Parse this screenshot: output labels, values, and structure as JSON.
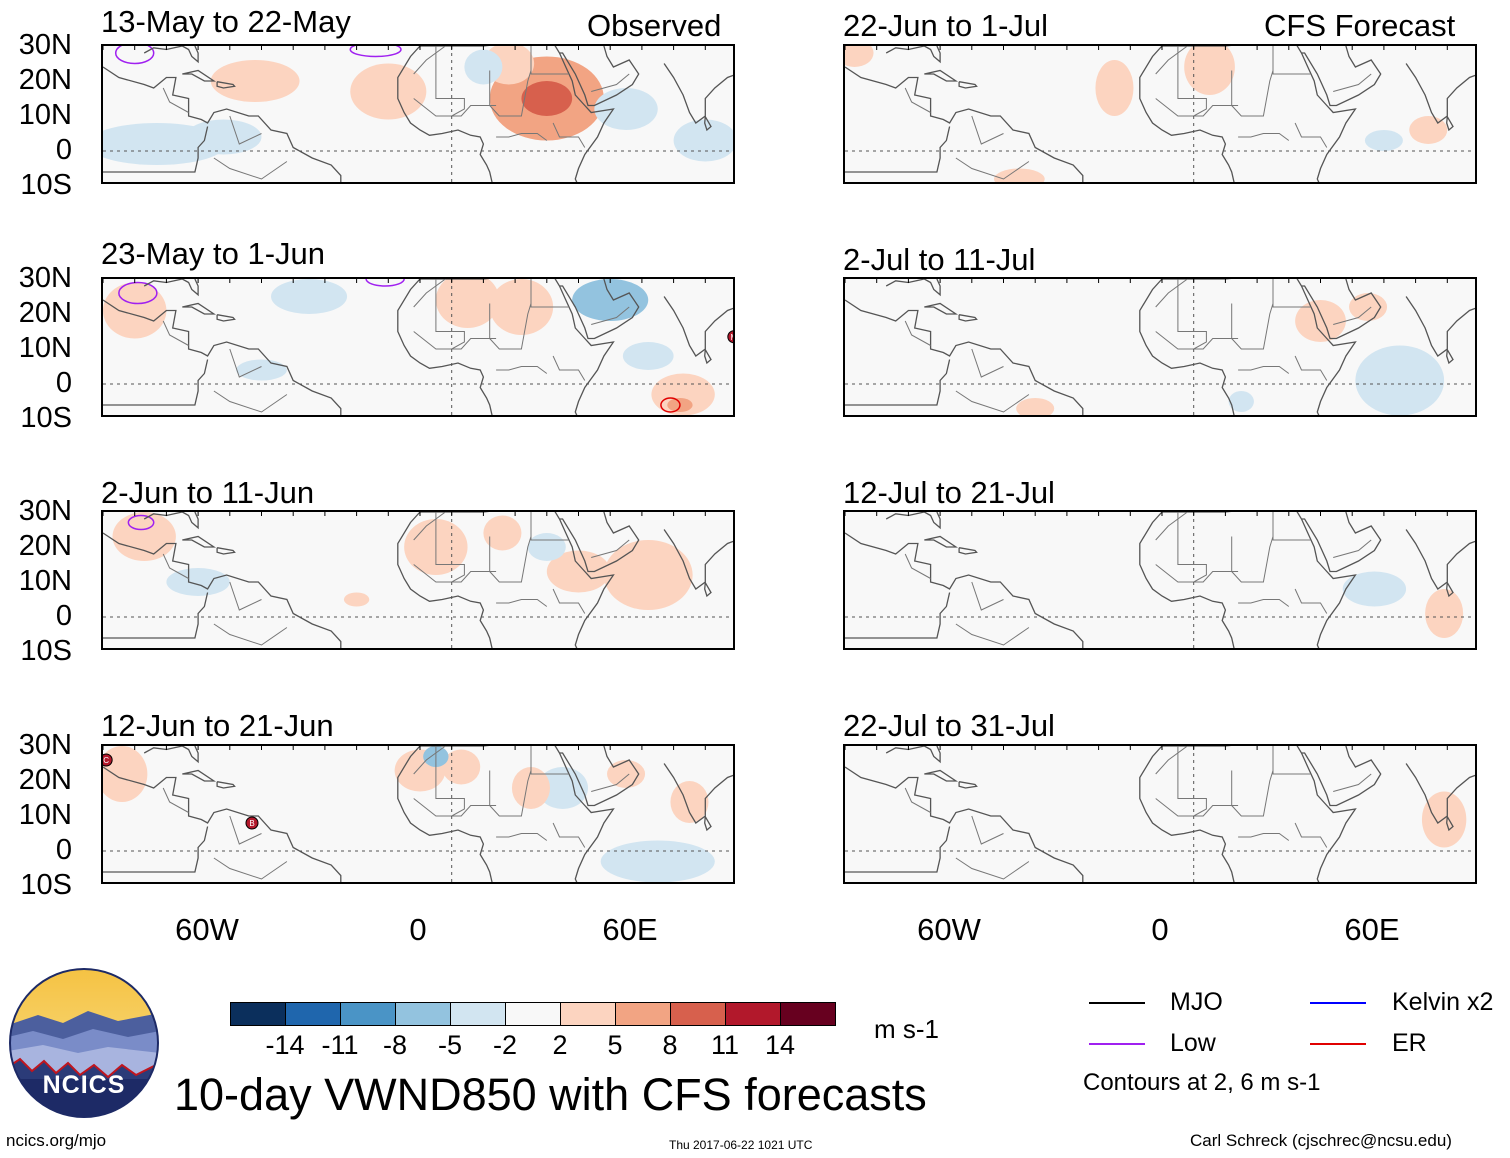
{
  "header": {
    "observed_label": "Observed",
    "forecast_label": "CFS Forecast"
  },
  "panels_left": [
    {
      "title": "13-May to 22-May"
    },
    {
      "title": "23-May to 1-Jun"
    },
    {
      "title": "2-Jun to 11-Jun"
    },
    {
      "title": "12-Jun to 21-Jun"
    }
  ],
  "panels_right": [
    {
      "title": "22-Jun to 1-Jul"
    },
    {
      "title": "2-Jul to 11-Jul"
    },
    {
      "title": "12-Jul to 21-Jul"
    },
    {
      "title": "22-Jul to 31-Jul"
    }
  ],
  "lat_ticks": [
    "30N",
    "20N",
    "10N",
    "0",
    "10S"
  ],
  "lon_ticks": [
    "60W",
    "0",
    "60E"
  ],
  "colorbar": {
    "colors": [
      "#0b2f5c",
      "#1f66ad",
      "#4a94c6",
      "#93c3df",
      "#d2e5f1",
      "#f8f8f8",
      "#fcd4c0",
      "#f2a483",
      "#d7604d",
      "#b2182b",
      "#67001f"
    ],
    "labels": [
      "-14",
      "-11",
      "-8",
      "-5",
      "-2",
      "2",
      "5",
      "8",
      "11",
      "14"
    ],
    "units": "m s-1"
  },
  "legend": {
    "items": [
      {
        "label": "MJO",
        "color": "#000000"
      },
      {
        "label": "Kelvin x2",
        "color": "#0000ff"
      },
      {
        "label": "Low",
        "color": "#a020f0"
      },
      {
        "label": "ER",
        "color": "#e00000"
      }
    ],
    "contours_note": "Contours at 2, 6 m s-1"
  },
  "logo": {
    "text": "NCICS"
  },
  "main_title": "10-day VWND850 with CFS forecasts",
  "footer": {
    "url": "ncics.org/mjo",
    "timestamp": "Thu 2017-06-22 1021 UTC",
    "author": "Carl Schreck (cjschrec@ncsu.edu)"
  },
  "storm_markers": [
    "M",
    "C",
    "B"
  ]
}
